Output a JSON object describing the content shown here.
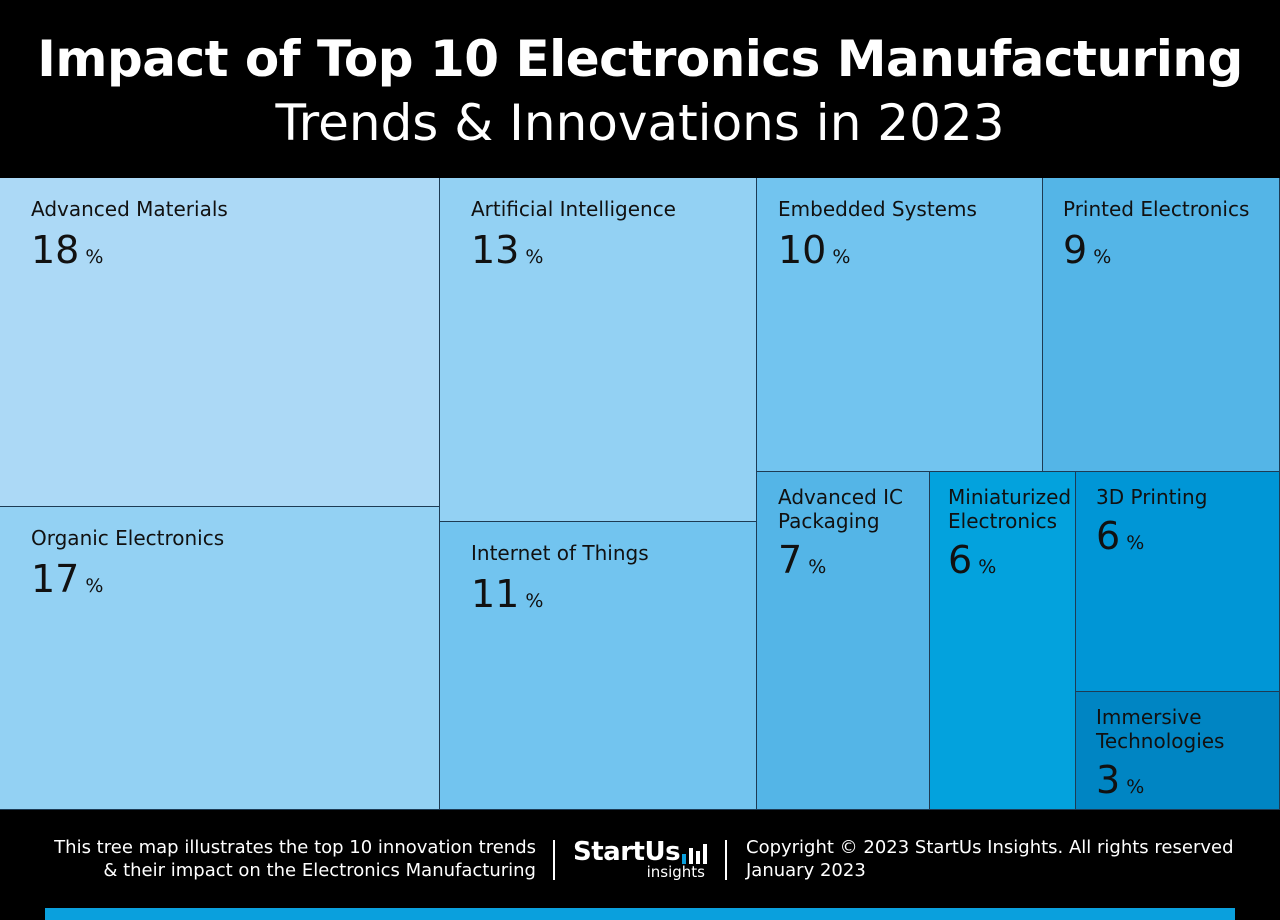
{
  "header": {
    "title_line1": "Impact of Top 10 Electronics Manufacturing",
    "title_line2": "Trends & Innovations in 2023"
  },
  "chart_data": {
    "type": "treemap",
    "unit": "%",
    "items": [
      {
        "label": "Advanced Materials",
        "value": 18,
        "color": "#acd9f6"
      },
      {
        "label": "Organic Electronics",
        "value": 17,
        "color": "#93d1f3"
      },
      {
        "label": "Artificial Intelligence",
        "value": 13,
        "color": "#93d1f3"
      },
      {
        "label": "Internet of Things",
        "value": 11,
        "color": "#72c4ef"
      },
      {
        "label": "Embedded Systems",
        "value": 10,
        "color": "#72c4ef"
      },
      {
        "label": "Printed Electronics",
        "value": 9,
        "color": "#54b5e7"
      },
      {
        "label": "Advanced IC Packaging",
        "value": 7,
        "color": "#54b5e7"
      },
      {
        "label": "Miniaturized Electronics",
        "value": 6,
        "color": "#03a2dd"
      },
      {
        "label": "3D Printing",
        "value": 6,
        "color": "#0096d6"
      },
      {
        "label": "Immersive Technologies",
        "value": 3,
        "color": "#0085c3"
      }
    ]
  },
  "footer": {
    "description_line1": "This tree map illustrates the top 10 innovation trends",
    "description_line2": "& their impact on the Electronics Manufacturing",
    "logo_word": "StartUs",
    "logo_sub": "insights",
    "copyright": "Copyright © 2023 StartUs Insights. All rights reserved",
    "date": "January 2023"
  },
  "colors": {
    "background": "#000000",
    "accent": "#0aa0dd",
    "text_light": "#ffffff"
  }
}
